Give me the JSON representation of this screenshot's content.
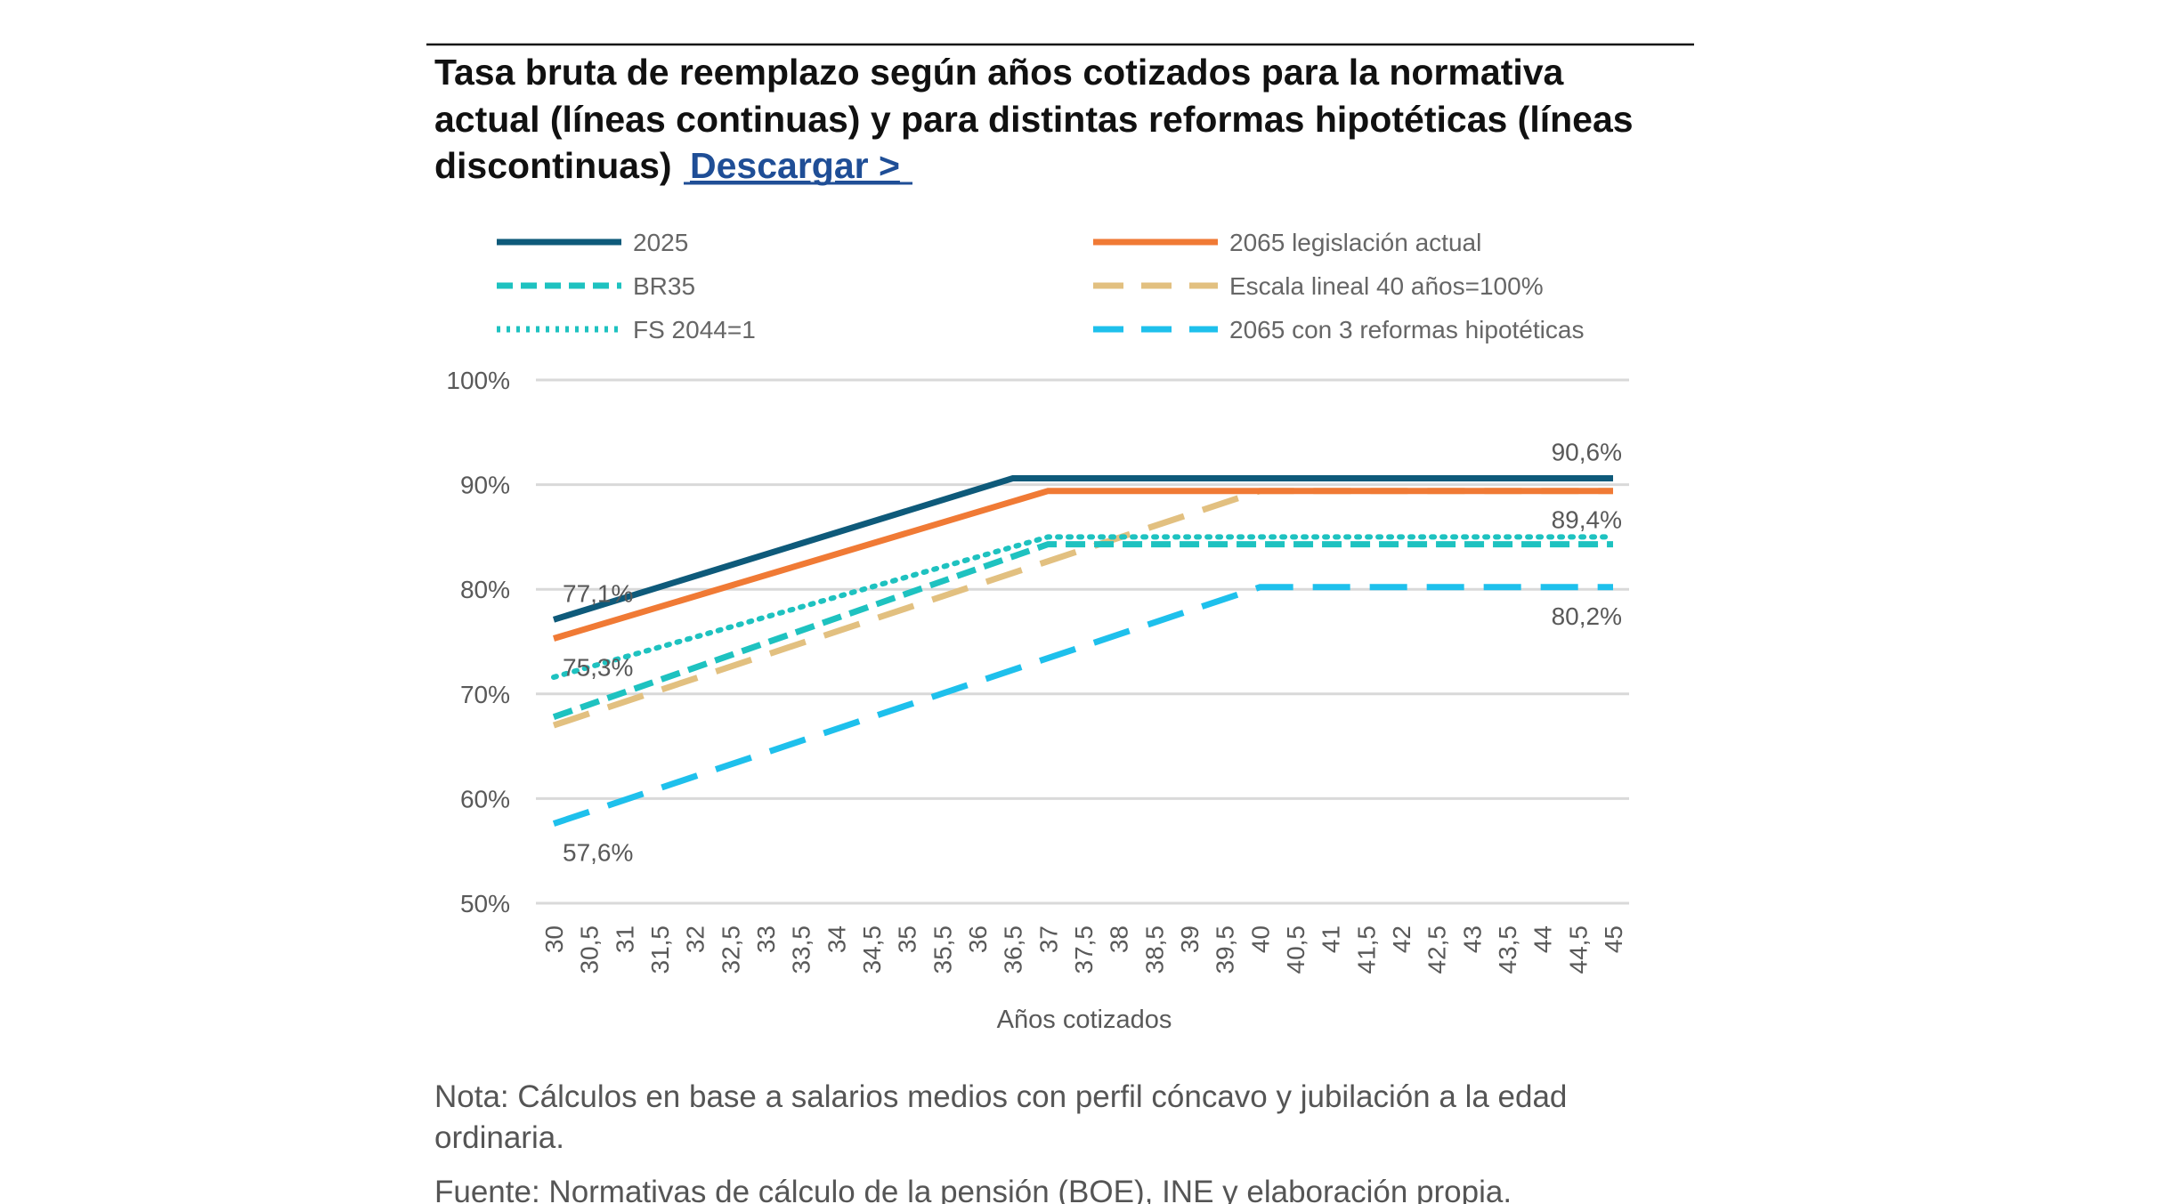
{
  "header": {
    "title_lines": [
      "Tasa bruta de reemplazo según años cotizados para la normativa",
      "actual (líneas continuas) y para distintas reformas hipotéticas (líneas",
      "discontinuas)"
    ],
    "download_link": "Descargar  >",
    "link_color": "#1f4e96"
  },
  "chart_data": {
    "type": "line",
    "title": "Tasa bruta de reemplazo según años cotizados para la normativa actual (líneas continuas) y para distintas reformas hipotéticas (líneas discontinuas)",
    "xlabel": "Años cotizados",
    "ylabel": "",
    "x": [
      30,
      30.5,
      31,
      31.5,
      32,
      32.5,
      33,
      33.5,
      34,
      34.5,
      35,
      35.5,
      36,
      36.5,
      37,
      37.5,
      38,
      38.5,
      39,
      39.5,
      40,
      40.5,
      41,
      41.5,
      42,
      42.5,
      43,
      43.5,
      44,
      44.5,
      45
    ],
    "x_tick_labels": [
      "30",
      "30,5",
      "31",
      "31,5",
      "32",
      "32,5",
      "33",
      "33,5",
      "34",
      "34,5",
      "35",
      "35,5",
      "36",
      "36,5",
      "37",
      "37,5",
      "38",
      "38,5",
      "39",
      "39,5",
      "40",
      "40,5",
      "41",
      "41,5",
      "42",
      "42,5",
      "43",
      "43,5",
      "44",
      "44,5",
      "45"
    ],
    "ylim": [
      50,
      100
    ],
    "y_ticks": [
      50,
      60,
      70,
      80,
      90,
      100
    ],
    "y_tick_labels": [
      "50%",
      "60%",
      "70%",
      "80%",
      "90%",
      "100%"
    ],
    "grid": true,
    "legend_position": "top",
    "series": [
      {
        "name": "2025",
        "color": "#0e5a7a",
        "style": "solid",
        "points": [
          [
            30,
            77.1
          ],
          [
            36.5,
            90.6
          ],
          [
            45,
            90.6
          ]
        ]
      },
      {
        "name": "2065 legislación actual",
        "color": "#f07a35",
        "style": "solid",
        "points": [
          [
            30,
            75.3
          ],
          [
            37,
            89.4
          ],
          [
            45,
            89.4
          ]
        ]
      },
      {
        "name": "BR35",
        "color": "#1ec2c0",
        "style": "dashed",
        "points": [
          [
            30,
            67.8
          ],
          [
            37,
            84.3
          ],
          [
            45,
            84.3
          ]
        ]
      },
      {
        "name": "Escala lineal 40 años=100%",
        "color": "#e2c080",
        "style": "dashed-long",
        "points": [
          [
            30,
            67.0
          ],
          [
            40,
            89.4
          ],
          [
            45,
            89.4
          ]
        ]
      },
      {
        "name": "FS 2044=1",
        "color": "#1ec2c0",
        "style": "dotted",
        "points": [
          [
            30,
            71.6
          ],
          [
            37,
            85.0
          ],
          [
            45,
            85.0
          ]
        ]
      },
      {
        "name": "2065 con 3 reformas hipotéticas",
        "color": "#1ec0ec",
        "style": "dashed-long",
        "points": [
          [
            30,
            57.6
          ],
          [
            40,
            80.2
          ],
          [
            45,
            80.2
          ]
        ]
      }
    ],
    "data_labels": [
      {
        "text": "77,1%",
        "x": 30,
        "y": 77.1,
        "anchor": "start",
        "pos": "above"
      },
      {
        "text": "75,3%",
        "x": 30,
        "y": 75.3,
        "anchor": "start",
        "pos": "below"
      },
      {
        "text": "57,6%",
        "x": 30,
        "y": 57.6,
        "anchor": "start",
        "pos": "below"
      },
      {
        "text": "90,6%",
        "x": 45,
        "y": 90.6,
        "anchor": "end",
        "pos": "above"
      },
      {
        "text": "89,4%",
        "x": 45,
        "y": 89.4,
        "anchor": "end",
        "pos": "below"
      },
      {
        "text": "80,2%",
        "x": 45,
        "y": 80.2,
        "anchor": "end",
        "pos": "below"
      }
    ]
  },
  "footer": {
    "note_lines": [
      "Nota: Cálculos en base a salarios medios con perfil cóncavo y jubilación a la edad",
      "ordinaria."
    ],
    "source": "Fuente: Normativas de cálculo de la pensión (BOE), INE y elaboración propia."
  }
}
